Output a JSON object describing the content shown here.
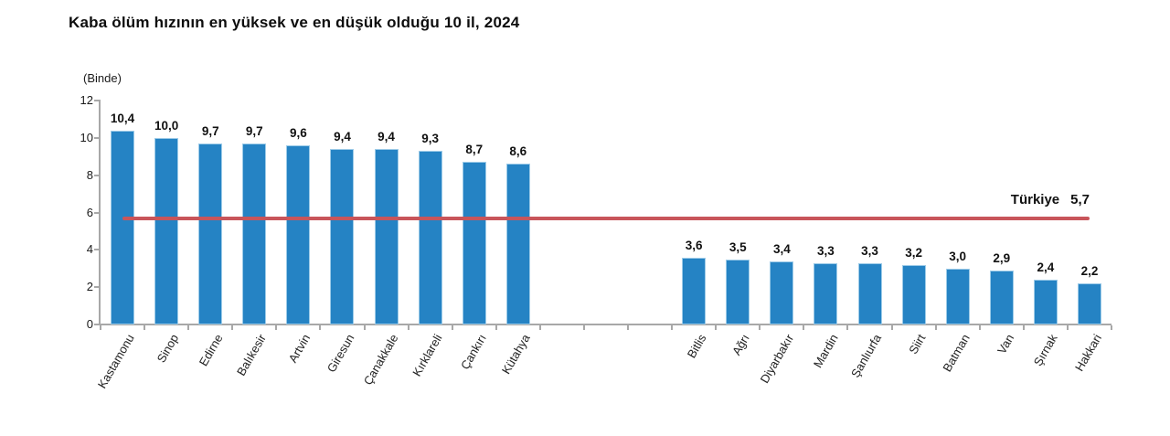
{
  "title": "Kaba ölüm hızının en yüksek ve en düşük olduğu 10 il, 2024",
  "chart_data": {
    "type": "bar",
    "title": "Kaba ölüm hızının en yüksek ve en düşük olduğu 10 il, 2024",
    "xlabel": "",
    "ylabel": "(Binde)",
    "ylim": [
      0,
      12
    ],
    "yticks": [
      0,
      2,
      4,
      6,
      8,
      10,
      12
    ],
    "grid": false,
    "legend_position": "none",
    "bar_color": "#2583c4",
    "bar_edge_color": "#9dcbe8",
    "axis_color": "#a8a8a8",
    "group_gap_slots": 3,
    "groups": [
      {
        "name": "en yüksek 10 il",
        "categories": [
          "Kastamonu",
          "Sinop",
          "Edirne",
          "Balıkesir",
          "Artvin",
          "Giresun",
          "Çanakkale",
          "Kırklareli",
          "Çankırı",
          "Kütahya"
        ],
        "values": [
          10.4,
          10.0,
          9.7,
          9.7,
          9.6,
          9.4,
          9.4,
          9.3,
          8.7,
          8.6
        ],
        "labels": [
          "10,4",
          "10,0",
          "9,7",
          "9,7",
          "9,6",
          "9,4",
          "9,4",
          "9,3",
          "8,7",
          "8,6"
        ]
      },
      {
        "name": "en düşük 10 il",
        "categories": [
          "Bitlis",
          "Ağrı",
          "Diyarbakır",
          "Mardin",
          "Şanlıurfa",
          "Siirt",
          "Batman",
          "Van",
          "Şırnak",
          "Hakkari"
        ],
        "values": [
          3.6,
          3.5,
          3.4,
          3.3,
          3.3,
          3.2,
          3.0,
          2.9,
          2.4,
          2.2
        ],
        "labels": [
          "3,6",
          "3,5",
          "3,4",
          "3,3",
          "3,3",
          "3,2",
          "3,0",
          "2,9",
          "2,4",
          "2,2"
        ]
      }
    ],
    "reference_line": {
      "label": "Türkiye",
      "display_value": "5,7",
      "value": 5.7,
      "color": "#c8555a"
    }
  }
}
